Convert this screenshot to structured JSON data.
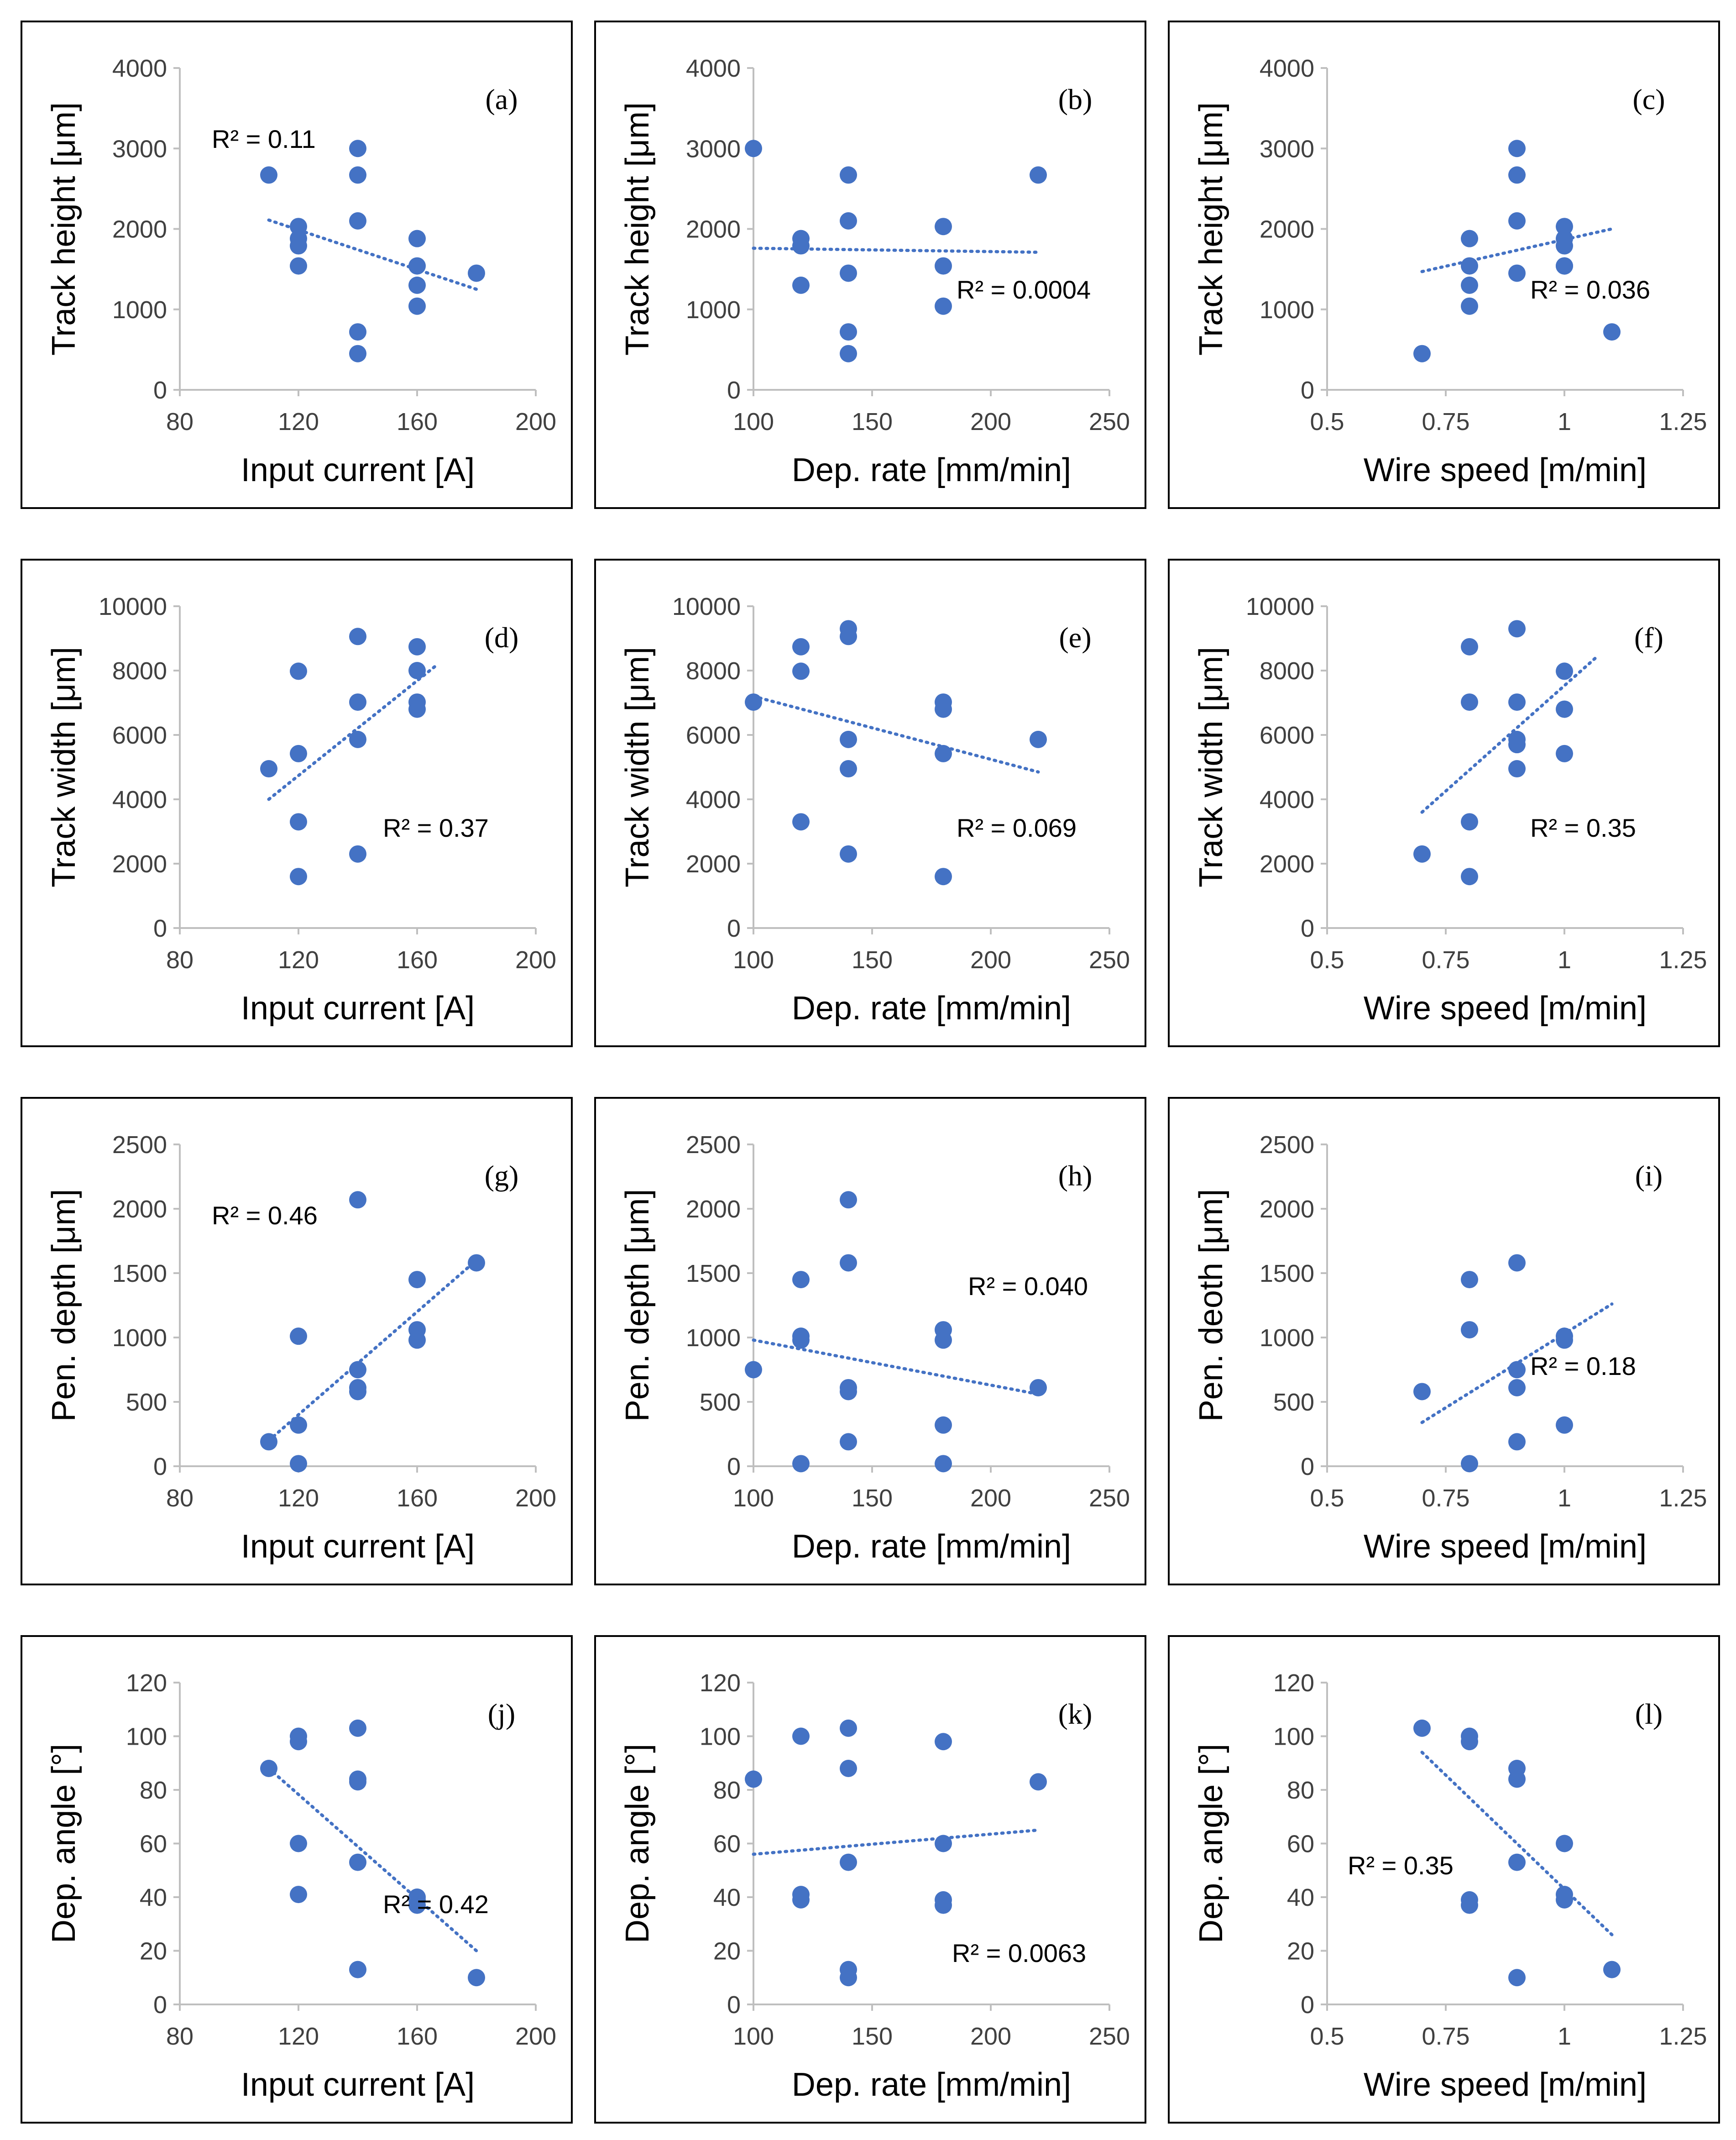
{
  "colors": {
    "marker": "#4472C4",
    "trend": "#4472C4",
    "axis": "#BFBFBF",
    "frame": "#000000"
  },
  "chart_data": [
    {
      "type": "scatter",
      "label": "(a)",
      "xlabel": "Input current [A]",
      "ylabel": "Track height [μm]",
      "xlim": [
        80,
        200
      ],
      "xticks": [
        80,
        120,
        160,
        200
      ],
      "ylim": [
        0,
        4000
      ],
      "yticks": [
        0,
        1000,
        2000,
        3000,
        4000
      ],
      "x": [
        110,
        120,
        120,
        120,
        120,
        140,
        140,
        140,
        140,
        140,
        160,
        160,
        160,
        160,
        180
      ],
      "y": [
        2670,
        2030,
        1880,
        1790,
        1540,
        3000,
        2670,
        2100,
        720,
        450,
        1880,
        1540,
        1300,
        1040,
        1450
      ],
      "trend": [
        [
          110,
          2110
        ],
        [
          180,
          1250
        ]
      ],
      "r2": "R² = 0.11",
      "r2_pos": "top-left"
    },
    {
      "type": "scatter",
      "label": "(b)",
      "xlabel": "Dep. rate [mm/min]",
      "ylabel": "Track height [μm]",
      "xlim": [
        100,
        250
      ],
      "xticks": [
        100,
        150,
        200,
        250
      ],
      "ylim": [
        0,
        4000
      ],
      "yticks": [
        0,
        1000,
        2000,
        3000,
        4000
      ],
      "x": [
        100,
        120,
        120,
        120,
        140,
        140,
        140,
        140,
        140,
        180,
        180,
        180,
        220
      ],
      "y": [
        3000,
        1880,
        1790,
        1300,
        2670,
        2100,
        1450,
        720,
        450,
        2030,
        1540,
        1040,
        2670
      ],
      "trend": [
        [
          100,
          1760
        ],
        [
          220,
          1710
        ]
      ],
      "r2": "R² = 0.0004",
      "r2_pos": "mid-right"
    },
    {
      "type": "scatter",
      "label": "(c)",
      "xlabel": "Wire speed [m/min]",
      "ylabel": "Track height [μm]",
      "xlim": [
        0.5,
        1.25
      ],
      "xticks": [
        "0.5",
        "0.75",
        "1",
        "1.25"
      ],
      "ylim": [
        0,
        4000
      ],
      "yticks": [
        0,
        1000,
        2000,
        3000,
        4000
      ],
      "x": [
        0.7,
        0.8,
        0.8,
        0.8,
        0.8,
        0.9,
        0.9,
        0.9,
        0.9,
        1,
        1,
        1,
        1,
        1,
        1.1
      ],
      "y": [
        450,
        1880,
        1540,
        1300,
        1040,
        3000,
        2670,
        2100,
        1450,
        2030,
        1880,
        1790,
        1540,
        1540,
        720
      ],
      "trend": [
        [
          0.7,
          1470
        ],
        [
          1.1,
          2000
        ]
      ],
      "r2": "R² = 0.036",
      "r2_pos": "mid-right"
    },
    {
      "type": "scatter",
      "label": "(d)",
      "xlabel": "Input current [A]",
      "ylabel": "Track width [μm]",
      "xlim": [
        80,
        200
      ],
      "xticks": [
        80,
        120,
        160,
        200
      ],
      "ylim": [
        0,
        10000
      ],
      "yticks": [
        0,
        2000,
        4000,
        6000,
        8000,
        10000
      ],
      "x": [
        110,
        120,
        120,
        120,
        120,
        140,
        140,
        140,
        140,
        160,
        160,
        160,
        160
      ],
      "y": [
        4950,
        7980,
        5420,
        3300,
        1600,
        9060,
        7020,
        5860,
        2300,
        8740,
        8000,
        7020,
        6800
      ],
      "trend": [
        [
          110,
          4000
        ],
        [
          167,
          8200
        ]
      ],
      "r2": "R² = 0.37",
      "r2_pos": "mid-right"
    },
    {
      "type": "scatter",
      "label": "(e)",
      "xlabel": "Dep. rate [mm/min]",
      "ylabel": "Track width [μm]",
      "xlim": [
        100,
        250
      ],
      "xticks": [
        100,
        150,
        200,
        250
      ],
      "ylim": [
        0,
        10000
      ],
      "yticks": [
        0,
        2000,
        4000,
        6000,
        8000,
        10000
      ],
      "x": [
        100,
        120,
        120,
        120,
        140,
        140,
        140,
        140,
        140,
        180,
        180,
        180,
        180,
        220
      ],
      "y": [
        7020,
        8740,
        7980,
        3300,
        9300,
        9060,
        5860,
        4950,
        2300,
        7020,
        6800,
        5420,
        1600,
        5860
      ],
      "trend": [
        [
          100,
          7200
        ],
        [
          220,
          4850
        ]
      ],
      "r2": "R² = 0.069",
      "r2_pos": "mid-right"
    },
    {
      "type": "scatter",
      "label": "(f)",
      "xlabel": "Wire speed [m/min]",
      "ylabel": "Track width [μm]",
      "xlim": [
        0.5,
        1.25
      ],
      "xticks": [
        "0.5",
        "0.75",
        "1",
        "1.25"
      ],
      "ylim": [
        0,
        10000
      ],
      "yticks": [
        0,
        2000,
        4000,
        6000,
        8000,
        10000
      ],
      "x": [
        0.7,
        0.8,
        0.8,
        0.8,
        0.8,
        0.9,
        0.9,
        0.9,
        0.9,
        0.9,
        1,
        1,
        1
      ],
      "y": [
        2300,
        8740,
        7020,
        3300,
        1600,
        9300,
        7020,
        5860,
        5700,
        4950,
        7980,
        6800,
        5420
      ],
      "trend": [
        [
          0.7,
          3600
        ],
        [
          1.07,
          8450
        ]
      ],
      "r2": "R² = 0.35",
      "r2_pos": "mid-right"
    },
    {
      "type": "scatter",
      "label": "(g)",
      "xlabel": "Input current [A]",
      "ylabel": "Pen. depth [μm]",
      "xlim": [
        80,
        200
      ],
      "xticks": [
        80,
        120,
        160,
        200
      ],
      "ylim": [
        0,
        2500
      ],
      "yticks": [
        0,
        500,
        1000,
        1500,
        2000,
        2500
      ],
      "x": [
        110,
        120,
        120,
        120,
        140,
        140,
        140,
        140,
        160,
        160,
        160,
        180
      ],
      "y": [
        190,
        1010,
        320,
        20,
        2070,
        750,
        610,
        580,
        1450,
        1060,
        980,
        1580
      ],
      "trend": [
        [
          110,
          200
        ],
        [
          180,
          1600
        ]
      ],
      "r2": "R² = 0.46",
      "r2_pos": "top-left"
    },
    {
      "type": "scatter",
      "label": "(h)",
      "xlabel": "Dep. rate [mm/min]",
      "ylabel": "Pen. depth [μm]",
      "xlim": [
        100,
        250
      ],
      "xticks": [
        100,
        150,
        200,
        250
      ],
      "ylim": [
        0,
        2500
      ],
      "yticks": [
        0,
        500,
        1000,
        1500,
        2000,
        2500
      ],
      "x": [
        100,
        120,
        120,
        120,
        120,
        140,
        140,
        140,
        140,
        140,
        180,
        180,
        180,
        180,
        220
      ],
      "y": [
        750,
        1450,
        1010,
        980,
        20,
        2070,
        1580,
        610,
        580,
        190,
        1060,
        980,
        320,
        20,
        610
      ],
      "trend": [
        [
          100,
          980
        ],
        [
          220,
          560
        ]
      ],
      "r2": "R² = 0.040",
      "r2_pos": "top-right"
    },
    {
      "type": "scatter",
      "label": "(i)",
      "xlabel": "Wire speed [m/min]",
      "ylabel": "Pen. deoth [μm]",
      "xlim": [
        0.5,
        1.25
      ],
      "xticks": [
        "0.5",
        "0.75",
        "1",
        "1.25"
      ],
      "ylim": [
        0,
        2500
      ],
      "yticks": [
        0,
        500,
        1000,
        1500,
        2000,
        2500
      ],
      "x": [
        0.7,
        0.8,
        0.8,
        0.8,
        0.9,
        0.9,
        0.9,
        0.9,
        1,
        1,
        1
      ],
      "y": [
        580,
        1450,
        1060,
        20,
        1580,
        750,
        610,
        190,
        1010,
        980,
        320
      ],
      "trend": [
        [
          0.7,
          340
        ],
        [
          1.1,
          1260
        ]
      ],
      "r2": "R² = 0.18",
      "r2_pos": "mid-right"
    },
    {
      "type": "scatter",
      "label": "(j)",
      "xlabel": "Input current [A]",
      "ylabel": "Dep. angle [°]",
      "xlim": [
        80,
        200
      ],
      "xticks": [
        80,
        120,
        160,
        200
      ],
      "ylim": [
        0,
        120
      ],
      "yticks": [
        0,
        20,
        40,
        60,
        80,
        100,
        120
      ],
      "x": [
        110,
        120,
        120,
        120,
        120,
        140,
        140,
        140,
        140,
        140,
        160,
        160,
        160,
        180
      ],
      "y": [
        88,
        100,
        98,
        60,
        41,
        103,
        84,
        83,
        53,
        13,
        40,
        39,
        37,
        10
      ],
      "trend": [
        [
          110,
          88
        ],
        [
          180,
          20
        ]
      ],
      "r2": "R² = 0.42",
      "r2_pos": "mid-right"
    },
    {
      "type": "scatter",
      "label": "(k)",
      "xlabel": "Dep. rate [mm/min]",
      "ylabel": "Dep. angle [°]",
      "xlim": [
        100,
        250
      ],
      "xticks": [
        100,
        150,
        200,
        250
      ],
      "ylim": [
        0,
        120
      ],
      "yticks": [
        0,
        20,
        40,
        60,
        80,
        100,
        120
      ],
      "x": [
        100,
        120,
        120,
        120,
        140,
        140,
        140,
        140,
        140,
        180,
        180,
        180,
        180,
        220
      ],
      "y": [
        84,
        100,
        41,
        39,
        103,
        88,
        53,
        13,
        10,
        98,
        60,
        39,
        37,
        83
      ],
      "trend": [
        [
          100,
          56
        ],
        [
          220,
          65
        ]
      ],
      "r2": "R² = 0.0063",
      "r2_pos": "bottom-right"
    },
    {
      "type": "scatter",
      "label": "(l)",
      "xlabel": "Wire speed [m/min]",
      "ylabel": "Dep. angle [°]",
      "xlim": [
        0.5,
        1.25
      ],
      "xticks": [
        "0.5",
        "0.75",
        "1",
        "1.25"
      ],
      "ylim": [
        0,
        120
      ],
      "yticks": [
        0,
        20,
        40,
        60,
        80,
        100,
        120
      ],
      "x": [
        0.7,
        0.8,
        0.8,
        0.8,
        0.8,
        0.9,
        0.9,
        0.9,
        0.9,
        1,
        1,
        1,
        1.1
      ],
      "y": [
        103,
        100,
        98,
        39,
        37,
        88,
        84,
        53,
        10,
        60,
        41,
        39,
        13
      ],
      "trend": [
        [
          0.7,
          94
        ],
        [
          1.1,
          26
        ]
      ],
      "r2": "R² = 0.35",
      "r2_pos": "mid-left"
    }
  ]
}
